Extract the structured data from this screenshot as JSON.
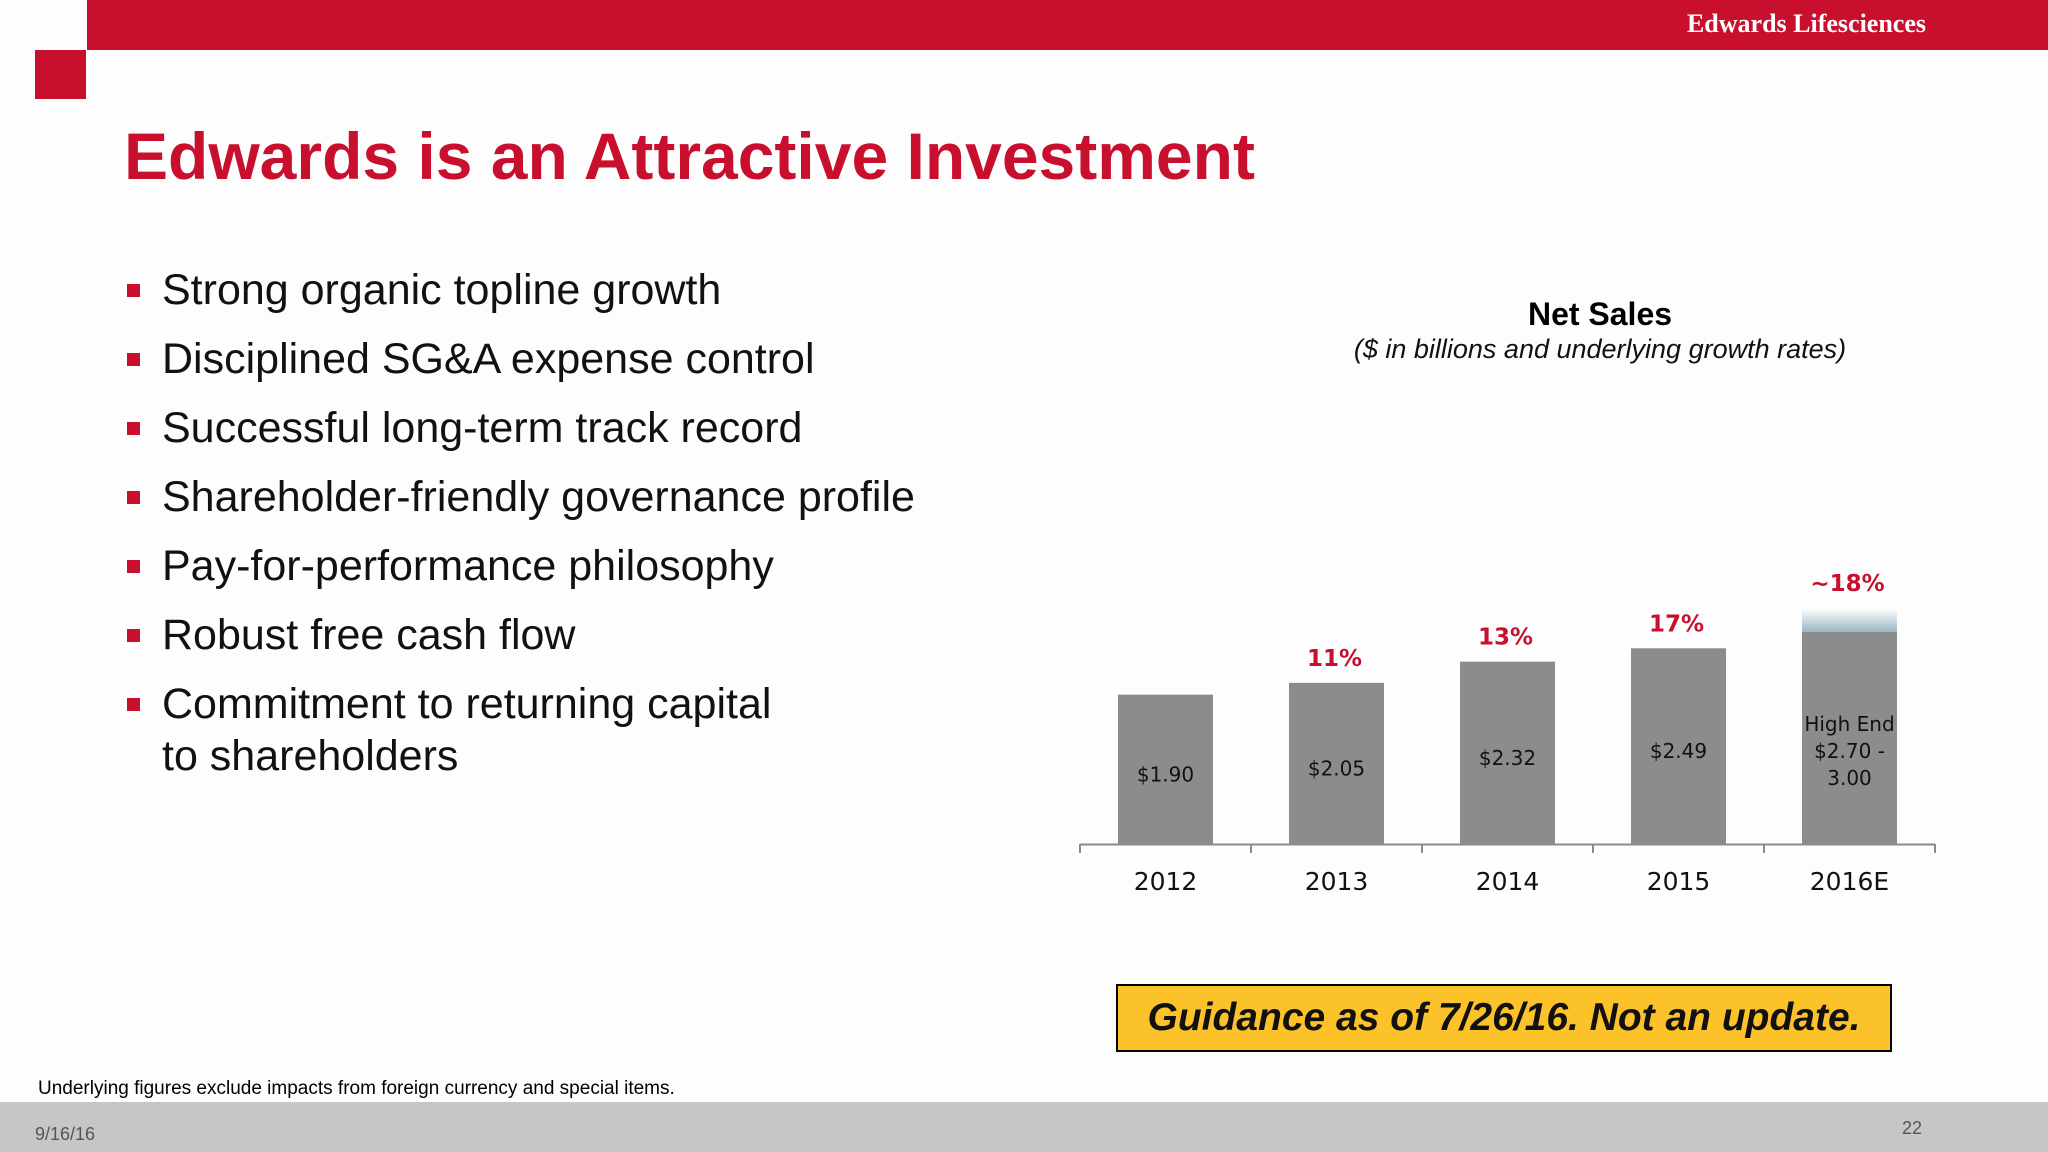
{
  "header": {
    "brand": "Edwards Lifesciences"
  },
  "slide": {
    "title": "Edwards is an Attractive Investment",
    "bullets": [
      "Strong organic topline growth",
      "Disciplined SG&A expense control",
      "Successful long-term track record",
      "Shareholder-friendly governance profile",
      "Pay-for-performance philosophy",
      "Robust free cash flow",
      "Commitment to returning capital\nto shareholders"
    ],
    "guidance": "Guidance as of 7/26/16. Not an update.",
    "footnote": "Underlying figures exclude impacts from foreign currency and special items.",
    "date": "9/16/16",
    "page": "22"
  },
  "colors": {
    "accent": "#c8102e",
    "bar": "#8a8c8e",
    "range": "#9cb6c4",
    "guidance_bg": "#fcc22a"
  },
  "chart_data": {
    "type": "bar",
    "title": "Net Sales",
    "subtitle": "($ in billions and underlying growth rates)",
    "categories": [
      "2012",
      "2013",
      "2014",
      "2015",
      "2016E"
    ],
    "values": [
      1.9,
      2.05,
      2.32,
      2.49,
      2.7
    ],
    "range_high": [
      null,
      null,
      null,
      null,
      3.0
    ],
    "value_labels": [
      "$1.90",
      "$2.05",
      "$2.32",
      "$2.49",
      "High End\n$2.70 -\n3.00"
    ],
    "growth_labels": [
      "",
      "11%",
      "13%",
      "17%",
      "~18%"
    ],
    "ylim": [
      0,
      3.4
    ],
    "grid": false,
    "legend": "none"
  }
}
